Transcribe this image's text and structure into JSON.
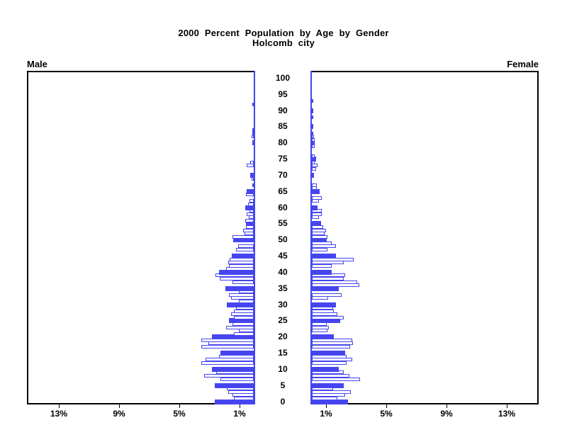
{
  "title": {
    "line1": "2000 Percent Population by Age by Gender",
    "line2": "Holcomb city"
  },
  "panel_labels": {
    "left": "Male",
    "right": "Female"
  },
  "colors": {
    "bar_fill": "#4545f0",
    "bar_outline": "#4545f0",
    "axis": "#000000",
    "background": "#ffffff"
  },
  "chart_data": {
    "type": "bar",
    "subtype": "population-pyramid",
    "title": "2000 Percent Population by Age by Gender",
    "subtitle": "Holcomb city",
    "age_axis": {
      "min": 0,
      "max": 100,
      "tick_step": 5,
      "tick_labels": [
        "0",
        "5",
        "10",
        "15",
        "20",
        "25",
        "30",
        "35",
        "40",
        "45",
        "50",
        "55",
        "60",
        "65",
        "70",
        "75",
        "80",
        "85",
        "90",
        "95",
        "100"
      ]
    },
    "percent_axis": {
      "ticks": [
        1,
        5,
        9,
        13
      ],
      "tick_labels": [
        "1%",
        "5%",
        "9%",
        "13%"
      ],
      "max": 15.2,
      "grid": false
    },
    "highlight_rule": "bars at ages divisible by 5 are solid filled; other ages are outlined",
    "series": [
      {
        "name": "Male",
        "side": "left",
        "values": [
          2.6,
          1.3,
          1.4,
          1.7,
          1.8,
          2.6,
          0,
          2.2,
          3.3,
          2.5,
          2.8,
          0,
          3.5,
          3.2,
          2.3,
          2.2,
          0,
          3.5,
          3.0,
          3.5,
          2.8,
          1.3,
          1.0,
          1.85,
          1.4,
          1.65,
          1.3,
          1.5,
          1.3,
          1.2,
          1.8,
          1.0,
          1.5,
          1.65,
          1.0,
          1.9,
          0,
          1.4,
          2.25,
          2.55,
          2.3,
          1.85,
          1.65,
          1.7,
          1.6,
          1.45,
          0,
          1.2,
          1.05,
          0,
          1.35,
          1.4,
          0.6,
          0.7,
          0.5,
          0.5,
          0.55,
          0.35,
          0.45,
          0.3,
          0.55,
          0.4,
          0.3,
          0,
          0.5,
          0.45,
          0,
          0.1,
          0,
          0.15,
          0.25,
          0,
          0,
          0.45,
          0.25,
          0,
          0,
          0,
          0,
          0,
          0.1,
          0,
          0.15,
          0.1,
          0.1,
          0,
          0,
          0,
          0,
          0,
          0,
          0,
          0.1,
          0,
          0,
          0,
          0,
          0,
          0,
          0,
          0
        ]
      },
      {
        "name": "Female",
        "side": "right",
        "values": [
          2.4,
          1.7,
          2.2,
          2.6,
          1.4,
          2.1,
          0,
          3.2,
          2.5,
          2.1,
          1.8,
          0,
          2.3,
          2.7,
          2.3,
          2.2,
          0,
          2.55,
          2.75,
          2.7,
          1.45,
          0,
          1.05,
          1.15,
          1.0,
          1.9,
          2.1,
          1.7,
          1.45,
          1.4,
          1.6,
          0,
          1.1,
          2.0,
          0,
          1.8,
          3.15,
          3.0,
          2.1,
          2.2,
          1.3,
          0,
          1.3,
          2.1,
          2.8,
          1.6,
          0,
          1.05,
          1.6,
          1.3,
          1.0,
          1.05,
          0.85,
          0.95,
          0.75,
          0.6,
          0,
          0.45,
          0.65,
          0.65,
          0.4,
          0,
          0.45,
          0.65,
          0,
          0.5,
          0.35,
          0.35,
          0,
          0,
          0.15,
          0,
          0.3,
          0.4,
          0.2,
          0.3,
          0.2,
          0,
          0,
          0.2,
          0.2,
          0.2,
          0.15,
          0.1,
          0,
          0.1,
          0,
          0,
          0.1,
          0,
          0.1,
          0,
          0,
          0.1,
          0,
          0,
          0,
          0,
          0,
          0,
          0
        ]
      }
    ]
  }
}
